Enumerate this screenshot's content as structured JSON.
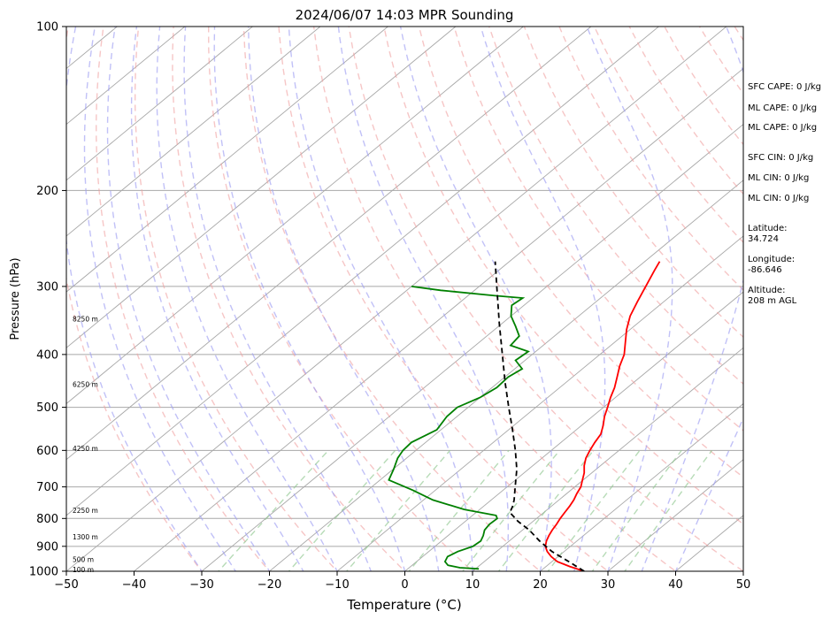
{
  "chart_data": {
    "type": "line",
    "title": "2024/06/07 14:03 MPR Sounding",
    "xlabel": "Temperature (°C)",
    "ylabel": "Pressure (hPa)",
    "xlim": [
      -50,
      50
    ],
    "ylim": [
      1000,
      100
    ],
    "yscale": "log",
    "x_ticks": [
      -50,
      -40,
      -30,
      -20,
      -10,
      0,
      10,
      20,
      30,
      40,
      50
    ],
    "y_ticks": [
      1000,
      900,
      800,
      700,
      600,
      500,
      400,
      300,
      200,
      100
    ],
    "grid": "horizontal at pressure ticks",
    "series": [
      {
        "role": "temperature",
        "color": "#ff0000",
        "points": [
          [
            1000,
            26.5
          ],
          [
            980,
            23.5
          ],
          [
            960,
            20.8
          ],
          [
            940,
            19.0
          ],
          [
            920,
            17.5
          ],
          [
            900,
            16.3
          ],
          [
            880,
            15.5
          ],
          [
            860,
            14.9
          ],
          [
            840,
            14.4
          ],
          [
            820,
            14.0
          ],
          [
            800,
            13.5
          ],
          [
            780,
            13.1
          ],
          [
            760,
            12.7
          ],
          [
            740,
            12.2
          ],
          [
            720,
            11.5
          ],
          [
            700,
            10.9
          ],
          [
            680,
            9.9
          ],
          [
            660,
            8.9
          ],
          [
            640,
            7.6
          ],
          [
            620,
            6.5
          ],
          [
            600,
            5.7
          ],
          [
            580,
            5.0
          ],
          [
            560,
            4.4
          ],
          [
            540,
            3.2
          ],
          [
            520,
            1.8
          ],
          [
            500,
            0.6
          ],
          [
            480,
            -0.7
          ],
          [
            460,
            -1.9
          ],
          [
            440,
            -3.4
          ],
          [
            420,
            -5.0
          ],
          [
            400,
            -6.4
          ],
          [
            380,
            -8.4
          ],
          [
            360,
            -10.5
          ],
          [
            340,
            -12.4
          ],
          [
            320,
            -13.9
          ],
          [
            300,
            -15.4
          ],
          [
            280,
            -17.0
          ],
          [
            270,
            -17.8
          ]
        ]
      },
      {
        "role": "dewpoint",
        "color": "#008000",
        "points": [
          [
            990,
            10.5
          ],
          [
            985,
            7.5
          ],
          [
            975,
            5.3
          ],
          [
            960,
            4.2
          ],
          [
            940,
            3.7
          ],
          [
            920,
            4.3
          ],
          [
            900,
            5.6
          ],
          [
            880,
            5.8
          ],
          [
            860,
            5.2
          ],
          [
            840,
            4.4
          ],
          [
            820,
            4.1
          ],
          [
            800,
            4.2
          ],
          [
            790,
            3.5
          ],
          [
            770,
            -2.3
          ],
          [
            740,
            -8.6
          ],
          [
            710,
            -13.3
          ],
          [
            680,
            -18.7
          ],
          [
            650,
            -19.9
          ],
          [
            620,
            -21.3
          ],
          [
            600,
            -21.9
          ],
          [
            580,
            -22.1
          ],
          [
            550,
            -20.6
          ],
          [
            520,
            -21.5
          ],
          [
            500,
            -21.6
          ],
          [
            480,
            -20.0
          ],
          [
            460,
            -19.3
          ],
          [
            440,
            -19.5
          ],
          [
            425,
            -18.9
          ],
          [
            410,
            -21.4
          ],
          [
            395,
            -21.1
          ],
          [
            385,
            -24.8
          ],
          [
            370,
            -25.2
          ],
          [
            355,
            -27.5
          ],
          [
            340,
            -30.0
          ],
          [
            325,
            -31.8
          ],
          [
            315,
            -31.5
          ],
          [
            312,
            -36.0
          ],
          [
            305,
            -45.0
          ],
          [
            300,
            -50.0
          ]
        ]
      },
      {
        "role": "parcel",
        "color": "#000000",
        "linestyle": "dashed",
        "points": [
          [
            1000,
            26.5
          ],
          [
            960,
            22.5
          ],
          [
            920,
            18.2
          ],
          [
            880,
            14.5
          ],
          [
            840,
            11.0
          ],
          [
            810,
            7.8
          ],
          [
            780,
            5.0
          ],
          [
            760,
            4.3
          ],
          [
            740,
            3.4
          ],
          [
            700,
            1.2
          ],
          [
            650,
            -1.7
          ],
          [
            600,
            -5.3
          ],
          [
            550,
            -9.4
          ],
          [
            500,
            -14.0
          ],
          [
            450,
            -19.0
          ],
          [
            400,
            -24.4
          ],
          [
            350,
            -30.5
          ],
          [
            300,
            -37.4
          ],
          [
            270,
            -42.1
          ]
        ]
      }
    ],
    "height_labels": [
      {
        "pressure": 997,
        "label": "100 m"
      },
      {
        "pressure": 955,
        "label": "500 m"
      },
      {
        "pressure": 868,
        "label": "1300 m"
      },
      {
        "pressure": 775,
        "label": "2250 m"
      },
      {
        "pressure": 597,
        "label": "4250 m"
      },
      {
        "pressure": 455,
        "label": "6250 m"
      },
      {
        "pressure": 345,
        "label": "8250 m"
      }
    ]
  },
  "stats": [
    "SFC CAPE: 0 J/kg",
    "ML CAPE: 0 J/kg",
    "ML CAPE: 0 J/kg",
    "SFC CIN: 0 J/kg",
    "ML CIN: 0 J/kg",
    "ML CIN: 0 J/kg",
    "Latitude:\n34.724",
    "Longitude:\n-86.646",
    "Altitude:\n208 m AGL"
  ]
}
